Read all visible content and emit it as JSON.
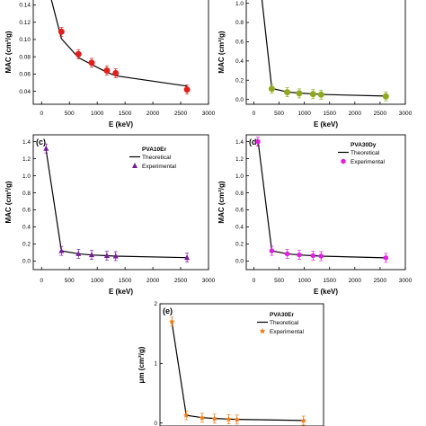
{
  "chart_data": [
    {
      "type": "line",
      "panel_label": "",
      "xlabel": "E (keV)",
      "ylabel": "MAC (cm²/g)",
      "xlim": [
        -150,
        3000
      ],
      "ylim": [
        0.025,
        0.152
      ],
      "xticks": [
        "0",
        "500",
        "1000",
        "1500",
        "2000",
        "2500",
        "3000"
      ],
      "yticks": [
        "0.04",
        "0.06",
        "0.08",
        "0.10",
        "0.12",
        "0.14"
      ],
      "legend_title": "",
      "series": [
        {
          "role": "theoretical",
          "color": "#000000",
          "x": [
            0,
            356,
            662,
            1173,
            1332,
            2614
          ],
          "y": [
            0.19,
            0.101,
            0.079,
            0.062,
            0.058,
            0.046
          ]
        },
        {
          "role": "experimental",
          "marker": "circle",
          "color": "#e0201a",
          "x": [
            356,
            662,
            900,
            1173,
            1332,
            2614
          ],
          "y": [
            0.109,
            0.083,
            0.073,
            0.064,
            0.061,
            0.042
          ]
        }
      ]
    },
    {
      "type": "line",
      "panel_label": "",
      "xlabel": "E (keV)",
      "ylabel": "MAC (cm²/g)",
      "xlim": [
        -150,
        3000
      ],
      "ylim": [
        -0.05,
        1.09
      ],
      "xticks": [
        "0",
        "500",
        "1000",
        "1500",
        "2000",
        "2500",
        "3000"
      ],
      "yticks": [
        "0.0",
        "0.2",
        "0.4",
        "0.6",
        "0.8",
        "1.0"
      ],
      "legend_title": "",
      "series": [
        {
          "role": "theoretical",
          "color": "#000000",
          "x": [
            0,
            356,
            662,
            900,
            1173,
            1332,
            2614
          ],
          "y": [
            1.8,
            0.115,
            0.078,
            0.066,
            0.058,
            0.052,
            0.035
          ]
        },
        {
          "role": "experimental",
          "marker": "circle",
          "color": "#8fa81e",
          "x": [
            356,
            662,
            900,
            1173,
            1332,
            2614
          ],
          "y": [
            0.11,
            0.075,
            0.063,
            0.055,
            0.05,
            0.032
          ]
        }
      ]
    },
    {
      "type": "line",
      "panel_label": "(c)",
      "xlabel": "E (keV)",
      "ylabel": "MAC (cm²/g)",
      "xlim": [
        -150,
        3000
      ],
      "ylim": [
        -0.1,
        1.48
      ],
      "xticks": [
        "0",
        "500",
        "1000",
        "1500",
        "2000",
        "2500",
        "3000"
      ],
      "yticks": [
        "0.0",
        "0.2",
        "0.4",
        "0.6",
        "0.8",
        "1.0",
        "1.2",
        "1.4"
      ],
      "legend_title": "PVA10Er",
      "legend_theoretical": "Theoretical",
      "legend_experimental": "Experimental",
      "series": [
        {
          "role": "theoretical",
          "color": "#000000",
          "x": [
            81,
            356,
            662,
            900,
            1173,
            1332,
            2614
          ],
          "y": [
            1.3,
            0.12,
            0.085,
            0.072,
            0.063,
            0.058,
            0.04
          ]
        },
        {
          "role": "experimental",
          "marker": "triangle",
          "color": "#7a1a9a",
          "x": [
            81,
            356,
            662,
            900,
            1173,
            1332,
            2614
          ],
          "y": [
            1.32,
            0.12,
            0.085,
            0.072,
            0.063,
            0.058,
            0.04
          ]
        }
      ]
    },
    {
      "type": "line",
      "panel_label": "(d)",
      "xlabel": "E (keV)",
      "ylabel": "MAC (cm²/g)",
      "xlim": [
        -150,
        3000
      ],
      "ylim": [
        -0.1,
        1.48
      ],
      "xticks": [
        "0",
        "500",
        "1000",
        "1500",
        "2000",
        "2500",
        "3000"
      ],
      "yticks": [
        "0.0",
        "0.2",
        "0.4",
        "0.6",
        "0.8",
        "1.0",
        "1.2",
        "1.4"
      ],
      "legend_title": "PVA30Dy",
      "legend_theoretical": "Theoretical",
      "legend_experimental": "Experimental",
      "series": [
        {
          "role": "theoretical",
          "color": "#000000",
          "x": [
            81,
            356,
            662,
            900,
            1173,
            1332,
            2614
          ],
          "y": [
            1.42,
            0.12,
            0.085,
            0.072,
            0.063,
            0.058,
            0.038
          ]
        },
        {
          "role": "experimental",
          "marker": "hexagon",
          "color": "#e020e0",
          "x": [
            81,
            356,
            662,
            900,
            1173,
            1332,
            2614
          ],
          "y": [
            1.4,
            0.12,
            0.085,
            0.072,
            0.063,
            0.058,
            0.038
          ]
        }
      ]
    },
    {
      "type": "line",
      "panel_label": "(e)",
      "xlabel": "",
      "ylabel": "μm (cm²/g)",
      "xlim": [
        -150,
        3000
      ],
      "ylim": [
        -0.05,
        2.0
      ],
      "xticks": [],
      "yticks": [
        "0",
        "1",
        "2"
      ],
      "legend_title": "PVA30Er",
      "legend_theoretical": "Theoretical",
      "legend_experimental": "Experimental",
      "series": [
        {
          "role": "theoretical",
          "color": "#000000",
          "x": [
            81,
            356,
            662,
            900,
            1173,
            1332,
            2614
          ],
          "y": [
            1.68,
            0.13,
            0.09,
            0.076,
            0.066,
            0.061,
            0.042
          ]
        },
        {
          "role": "experimental",
          "marker": "star",
          "color": "#f07a14",
          "x": [
            81,
            356,
            662,
            900,
            1173,
            1332,
            2614
          ],
          "y": [
            1.7,
            0.13,
            0.088,
            0.074,
            0.064,
            0.058,
            0.04
          ]
        }
      ]
    }
  ]
}
